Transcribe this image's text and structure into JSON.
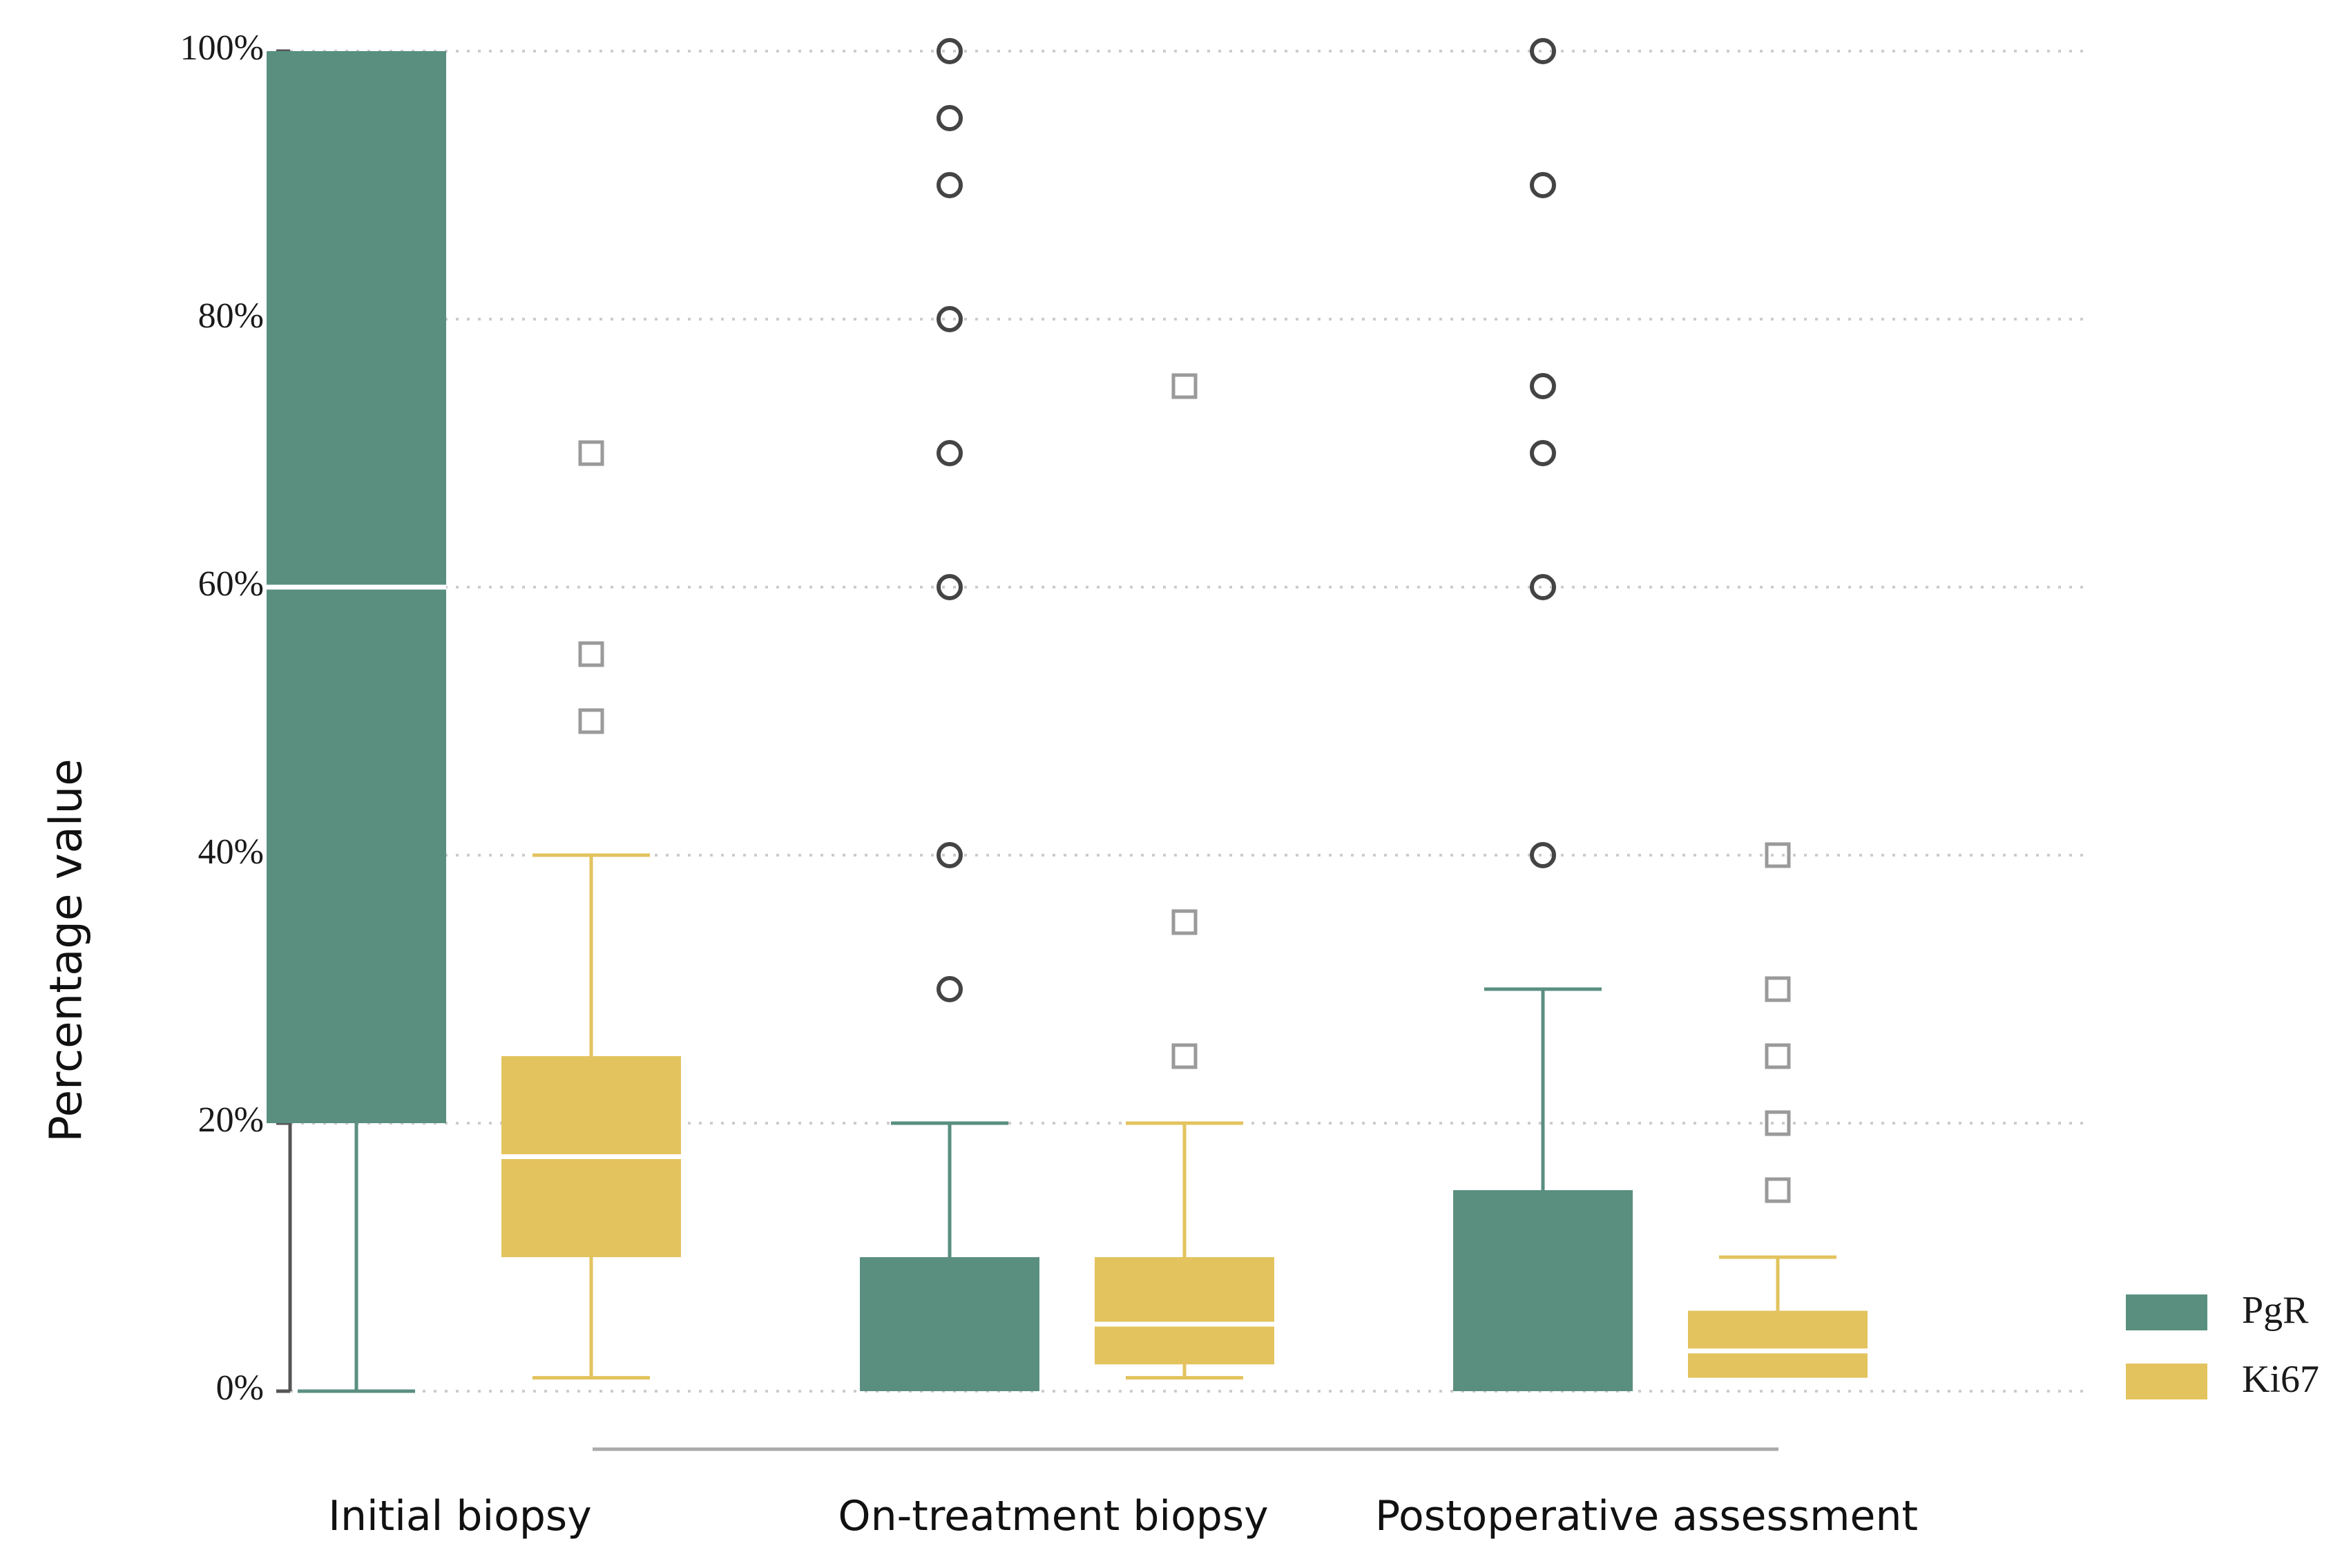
{
  "chart_data": {
    "type": "box",
    "title": "",
    "xlabel": "",
    "ylabel": "Percentage value",
    "ylim": [
      0,
      100
    ],
    "yticks": [
      "0%",
      "20%",
      "40%",
      "60%",
      "80%",
      "100%"
    ],
    "grid": "horizontal-dotted",
    "legend_position": "right",
    "categories": [
      "Initial biopsy",
      "On-treatment biopsy",
      "Postoperative assessment"
    ],
    "series": [
      {
        "name": "PgR",
        "color": "#5a8f80",
        "outlier_marker": "circle",
        "boxes": [
          {
            "min": 0,
            "q1": 20,
            "median": 60,
            "q3": 100,
            "max": 100,
            "outliers": []
          },
          {
            "min": 0,
            "q1": 0,
            "median": 0,
            "q3": 10,
            "max": 20,
            "outliers": [
              30,
              40,
              60,
              70,
              80,
              90,
              95,
              100
            ]
          },
          {
            "min": 0,
            "q1": 0,
            "median": 0,
            "q3": 15,
            "max": 30,
            "outliers": [
              40,
              60,
              70,
              75,
              90,
              100
            ]
          }
        ]
      },
      {
        "name": "Ki67",
        "color": "#e3c35e",
        "outlier_marker": "square",
        "boxes": [
          {
            "min": 1,
            "q1": 10,
            "median": 17.5,
            "q3": 25,
            "max": 40,
            "outliers": [
              50,
              55,
              70
            ]
          },
          {
            "min": 1,
            "q1": 2,
            "median": 5,
            "q3": 10,
            "max": 20,
            "outliers": [
              25,
              35,
              75
            ]
          },
          {
            "min": 1,
            "q1": 1,
            "median": 3,
            "q3": 6,
            "max": 10,
            "outliers": [
              15,
              20,
              25,
              30,
              40
            ]
          }
        ]
      }
    ]
  }
}
